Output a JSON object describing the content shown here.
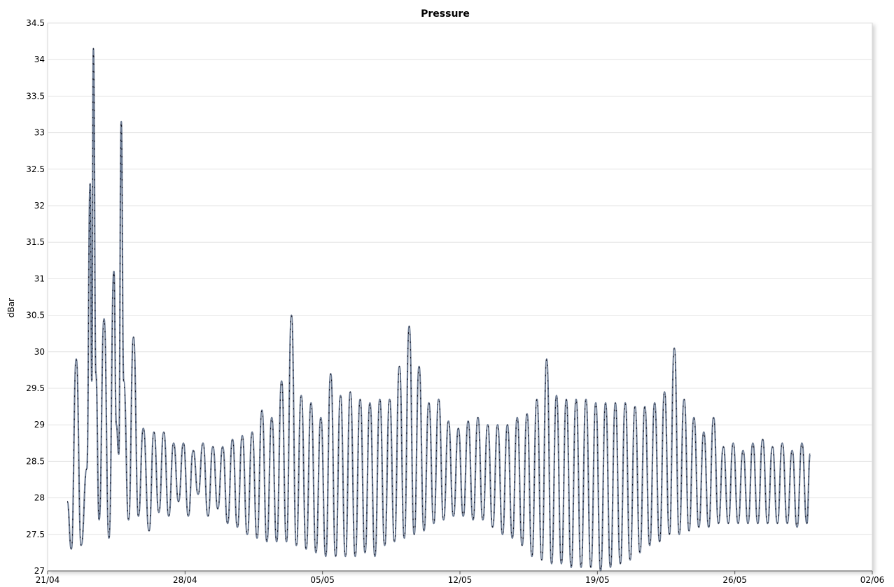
{
  "chart_data": {
    "type": "line",
    "title": "Pressure",
    "xlabel": "",
    "ylabel": "dBar",
    "x_tick_labels": [
      "21/04",
      "28/04",
      "05/05",
      "12/05",
      "19/05",
      "26/05",
      "02/06"
    ],
    "y_tick_labels": [
      "27",
      "27.5",
      "28",
      "28.5",
      "29",
      "29.5",
      "30",
      "30.5",
      "31",
      "31.5",
      "32",
      "32.5",
      "33",
      "33.5",
      "34",
      "34.5"
    ],
    "ylim": [
      27,
      34.5
    ],
    "xlim": [
      "2024-04-21",
      "2024-06-02"
    ],
    "grid": true,
    "legend": "none",
    "series": [
      {
        "color": "#6b7a92",
        "points": [
          [
            "2024-04-22T00:00",
            27.95
          ],
          [
            "2024-04-22T05:00",
            27.3
          ],
          [
            "2024-04-22T11:00",
            29.9
          ],
          [
            "2024-04-22T17:00",
            27.35
          ],
          [
            "2024-04-23T00:00",
            28.4
          ],
          [
            "2024-04-23T04:00",
            32.3
          ],
          [
            "2024-04-23T06:00",
            29.6
          ],
          [
            "2024-04-23T08:00",
            34.15
          ],
          [
            "2024-04-23T11:00",
            29.7
          ],
          [
            "2024-04-23T15:00",
            27.7
          ],
          [
            "2024-04-23T21:00",
            30.45
          ],
          [
            "2024-04-24T03:00",
            27.45
          ],
          [
            "2024-04-24T09:00",
            31.1
          ],
          [
            "2024-04-24T12:00",
            29.0
          ],
          [
            "2024-04-24T15:00",
            28.6
          ],
          [
            "2024-04-24T18:00",
            33.15
          ],
          [
            "2024-04-24T21:00",
            29.6
          ],
          [
            "2024-04-25T03:00",
            27.7
          ],
          [
            "2024-04-25T09:00",
            30.2
          ],
          [
            "2024-04-25T15:00",
            27.75
          ],
          [
            "2024-04-25T21:00",
            28.95
          ],
          [
            "2024-04-26T04:00",
            27.55
          ],
          [
            "2024-04-26T10:00",
            28.9
          ],
          [
            "2024-04-26T16:00",
            27.8
          ],
          [
            "2024-04-26T22:00",
            28.9
          ],
          [
            "2024-04-27T04:00",
            27.75
          ],
          [
            "2024-04-27T10:00",
            28.75
          ],
          [
            "2024-04-27T16:00",
            27.95
          ],
          [
            "2024-04-27T22:00",
            28.75
          ],
          [
            "2024-04-28T04:00",
            27.75
          ],
          [
            "2024-04-28T10:00",
            28.65
          ],
          [
            "2024-04-28T16:00",
            28.05
          ],
          [
            "2024-04-28T22:00",
            28.75
          ],
          [
            "2024-04-29T04:00",
            27.75
          ],
          [
            "2024-04-29T10:00",
            28.7
          ],
          [
            "2024-04-29T16:00",
            27.85
          ],
          [
            "2024-04-29T22:00",
            28.7
          ],
          [
            "2024-04-30T04:00",
            27.65
          ],
          [
            "2024-04-30T10:00",
            28.8
          ],
          [
            "2024-04-30T16:00",
            27.6
          ],
          [
            "2024-04-30T22:00",
            28.85
          ],
          [
            "2024-05-01T04:00",
            27.5
          ],
          [
            "2024-05-01T10:00",
            28.9
          ],
          [
            "2024-05-01T16:00",
            27.45
          ],
          [
            "2024-05-01T22:00",
            29.2
          ],
          [
            "2024-05-02T04:00",
            27.4
          ],
          [
            "2024-05-02T10:00",
            29.1
          ],
          [
            "2024-05-02T16:00",
            27.4
          ],
          [
            "2024-05-02T22:00",
            29.6
          ],
          [
            "2024-05-03T04:00",
            27.4
          ],
          [
            "2024-05-03T10:00",
            30.5
          ],
          [
            "2024-05-03T16:00",
            27.35
          ],
          [
            "2024-05-03T22:00",
            29.4
          ],
          [
            "2024-05-04T04:00",
            27.3
          ],
          [
            "2024-05-04T10:00",
            29.3
          ],
          [
            "2024-05-04T16:00",
            27.25
          ],
          [
            "2024-05-04T22:00",
            29.1
          ],
          [
            "2024-05-05T04:00",
            27.2
          ],
          [
            "2024-05-05T10:00",
            29.7
          ],
          [
            "2024-05-05T16:00",
            27.2
          ],
          [
            "2024-05-05T22:00",
            29.4
          ],
          [
            "2024-05-06T04:00",
            27.2
          ],
          [
            "2024-05-06T10:00",
            29.45
          ],
          [
            "2024-05-06T16:00",
            27.2
          ],
          [
            "2024-05-06T22:00",
            29.35
          ],
          [
            "2024-05-07T04:00",
            27.25
          ],
          [
            "2024-05-07T10:00",
            29.3
          ],
          [
            "2024-05-07T16:00",
            27.2
          ],
          [
            "2024-05-07T22:00",
            29.35
          ],
          [
            "2024-05-08T04:00",
            27.35
          ],
          [
            "2024-05-08T10:00",
            29.35
          ],
          [
            "2024-05-08T16:00",
            27.4
          ],
          [
            "2024-05-08T22:00",
            29.8
          ],
          [
            "2024-05-09T04:00",
            27.45
          ],
          [
            "2024-05-09T10:00",
            30.35
          ],
          [
            "2024-05-09T16:00",
            27.5
          ],
          [
            "2024-05-09T22:00",
            29.8
          ],
          [
            "2024-05-10T04:00",
            27.55
          ],
          [
            "2024-05-10T10:00",
            29.3
          ],
          [
            "2024-05-10T16:00",
            27.65
          ],
          [
            "2024-05-10T22:00",
            29.35
          ],
          [
            "2024-05-11T04:00",
            27.7
          ],
          [
            "2024-05-11T10:00",
            29.05
          ],
          [
            "2024-05-11T16:00",
            27.75
          ],
          [
            "2024-05-11T22:00",
            28.95
          ],
          [
            "2024-05-12T04:00",
            27.75
          ],
          [
            "2024-05-12T10:00",
            29.05
          ],
          [
            "2024-05-12T16:00",
            27.7
          ],
          [
            "2024-05-12T22:00",
            29.1
          ],
          [
            "2024-05-13T04:00",
            27.7
          ],
          [
            "2024-05-13T10:00",
            29.0
          ],
          [
            "2024-05-13T16:00",
            27.6
          ],
          [
            "2024-05-13T22:00",
            29.0
          ],
          [
            "2024-05-14T04:00",
            27.5
          ],
          [
            "2024-05-14T10:00",
            29.0
          ],
          [
            "2024-05-14T16:00",
            27.45
          ],
          [
            "2024-05-14T22:00",
            29.1
          ],
          [
            "2024-05-15T04:00",
            27.35
          ],
          [
            "2024-05-15T10:00",
            29.15
          ],
          [
            "2024-05-15T16:00",
            27.2
          ],
          [
            "2024-05-15T22:00",
            29.35
          ],
          [
            "2024-05-16T04:00",
            27.15
          ],
          [
            "2024-05-16T10:00",
            29.9
          ],
          [
            "2024-05-16T16:00",
            27.1
          ],
          [
            "2024-05-16T22:00",
            29.4
          ],
          [
            "2024-05-17T04:00",
            27.1
          ],
          [
            "2024-05-17T10:00",
            29.35
          ],
          [
            "2024-05-17T16:00",
            27.05
          ],
          [
            "2024-05-17T22:00",
            29.35
          ],
          [
            "2024-05-18T04:00",
            27.05
          ],
          [
            "2024-05-18T10:00",
            29.35
          ],
          [
            "2024-05-18T16:00",
            27.05
          ],
          [
            "2024-05-18T22:00",
            29.3
          ],
          [
            "2024-05-19T04:00",
            27.0
          ],
          [
            "2024-05-19T10:00",
            29.3
          ],
          [
            "2024-05-19T16:00",
            27.05
          ],
          [
            "2024-05-19T22:00",
            29.3
          ],
          [
            "2024-05-20T04:00",
            27.1
          ],
          [
            "2024-05-20T10:00",
            29.3
          ],
          [
            "2024-05-20T16:00",
            27.15
          ],
          [
            "2024-05-20T22:00",
            29.25
          ],
          [
            "2024-05-21T04:00",
            27.25
          ],
          [
            "2024-05-21T10:00",
            29.25
          ],
          [
            "2024-05-21T16:00",
            27.35
          ],
          [
            "2024-05-21T22:00",
            29.3
          ],
          [
            "2024-05-22T04:00",
            27.4
          ],
          [
            "2024-05-22T10:00",
            29.45
          ],
          [
            "2024-05-22T16:00",
            27.5
          ],
          [
            "2024-05-22T22:00",
            30.05
          ],
          [
            "2024-05-23T04:00",
            27.5
          ],
          [
            "2024-05-23T10:00",
            29.35
          ],
          [
            "2024-05-23T16:00",
            27.55
          ],
          [
            "2024-05-23T22:00",
            29.1
          ],
          [
            "2024-05-24T04:00",
            27.6
          ],
          [
            "2024-05-24T10:00",
            28.9
          ],
          [
            "2024-05-24T16:00",
            27.6
          ],
          [
            "2024-05-24T22:00",
            29.1
          ],
          [
            "2024-05-25T04:00",
            27.65
          ],
          [
            "2024-05-25T10:00",
            28.7
          ],
          [
            "2024-05-25T16:00",
            27.65
          ],
          [
            "2024-05-25T22:00",
            28.75
          ],
          [
            "2024-05-26T04:00",
            27.65
          ],
          [
            "2024-05-26T10:00",
            28.65
          ],
          [
            "2024-05-26T16:00",
            27.65
          ],
          [
            "2024-05-26T22:00",
            28.75
          ],
          [
            "2024-05-27T04:00",
            27.65
          ],
          [
            "2024-05-27T10:00",
            28.8
          ],
          [
            "2024-05-27T16:00",
            27.65
          ],
          [
            "2024-05-27T22:00",
            28.7
          ],
          [
            "2024-05-28T04:00",
            27.65
          ],
          [
            "2024-05-28T10:00",
            28.75
          ],
          [
            "2024-05-28T16:00",
            27.65
          ],
          [
            "2024-05-28T22:00",
            28.65
          ],
          [
            "2024-05-29T04:00",
            27.6
          ],
          [
            "2024-05-29T10:00",
            28.75
          ],
          [
            "2024-05-29T16:00",
            27.65
          ],
          [
            "2024-05-29T20:00",
            28.6
          ]
        ]
      }
    ]
  }
}
